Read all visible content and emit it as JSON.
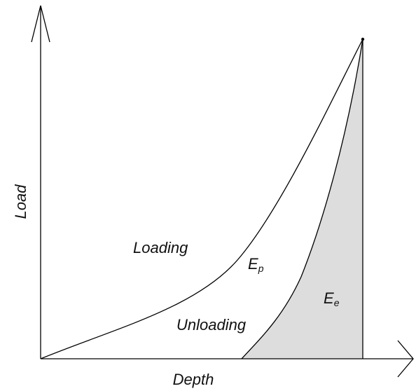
{
  "diagram": {
    "x_axis_label": "Depth",
    "y_axis_label": "Load",
    "loading_curve_label": "Loading",
    "unloading_curve_label": "Unloading",
    "plastic_energy": {
      "symbol": "E",
      "subscript": "p"
    },
    "elastic_energy": {
      "symbol": "E",
      "subscript": "e"
    },
    "colors": {
      "line": "#000000",
      "elastic_region_fill": "#dddddd",
      "background": "#ffffff",
      "text": "#111111"
    }
  }
}
